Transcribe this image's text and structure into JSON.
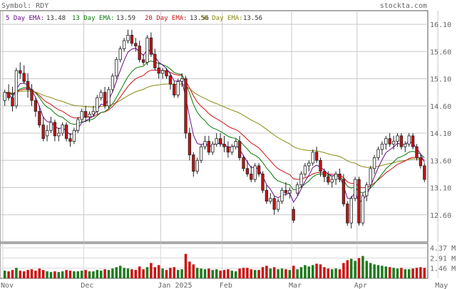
{
  "header": {
    "symbol_label": "Symbol: RDY",
    "site": "stockta.com"
  },
  "legend": [
    {
      "label": "5 Day EMA:",
      "value": "13.48",
      "color": "#6a0d8a"
    },
    {
      "label": "13 Day EMA:",
      "value": "13.59",
      "color": "#0a7a0a"
    },
    {
      "label": "20 Day EMA:",
      "value": "13.56",
      "color": "#cc1111"
    },
    {
      "label": "50 Day EMA:",
      "value": "13.56",
      "color": "#8a8a14"
    }
  ],
  "chart_data": {
    "type": "candlestick",
    "price_ylim": [
      12.1,
      16.35
    ],
    "price_ticks": [
      "16.10",
      "15.60",
      "15.10",
      "14.60",
      "14.10",
      "13.60",
      "13.10",
      "12.60"
    ],
    "price_tick_values": [
      16.1,
      15.6,
      15.1,
      14.6,
      14.1,
      13.6,
      13.1,
      12.6
    ],
    "volume_ticks": [
      "4.37 M",
      "2.91 M",
      "1.46 M"
    ],
    "volume_tick_values": [
      4.37,
      2.91,
      1.46
    ],
    "volume_ylim": [
      0,
      5.0
    ],
    "x_labels": [
      {
        "label": "Nov",
        "index": 0
      },
      {
        "label": "Dec",
        "index": 21
      },
      {
        "label": "Jan 2025",
        "index": 41
      },
      {
        "label": "Feb",
        "index": 57
      },
      {
        "label": "Mar",
        "index": 75
      },
      {
        "label": "Apr",
        "index": 92
      },
      {
        "label": "May",
        "index": 113
      }
    ],
    "colors": {
      "up": "#ffffff",
      "down": "#cc1111",
      "vol_up": "#1e7a1e",
      "vol_down": "#cc1111"
    },
    "candles": [
      [
        14.7,
        14.9,
        14.6,
        14.85,
        1.1
      ],
      [
        14.85,
        15.0,
        14.7,
        14.75,
        1.0
      ],
      [
        14.75,
        14.95,
        14.5,
        14.6,
        1.2
      ],
      [
        14.6,
        15.3,
        14.55,
        15.25,
        1.5
      ],
      [
        15.25,
        15.4,
        15.1,
        15.2,
        1.1
      ],
      [
        15.2,
        15.35,
        15.0,
        15.05,
        1.0
      ],
      [
        15.05,
        15.2,
        14.75,
        14.9,
        1.2
      ],
      [
        14.9,
        15.0,
        14.6,
        14.7,
        1.3
      ],
      [
        14.7,
        14.75,
        14.4,
        14.5,
        1.1
      ],
      [
        14.5,
        14.6,
        14.2,
        14.25,
        1.4
      ],
      [
        14.25,
        14.4,
        13.95,
        14.0,
        1.2
      ],
      [
        14.05,
        14.25,
        13.95,
        14.15,
        1.0
      ],
      [
        14.15,
        14.4,
        14.1,
        14.3,
        0.9
      ],
      [
        14.3,
        14.35,
        13.95,
        14.05,
        1.0
      ],
      [
        14.05,
        14.2,
        13.95,
        14.1,
        0.9
      ],
      [
        14.1,
        14.3,
        14.05,
        14.25,
        1.0
      ],
      [
        14.25,
        14.3,
        13.95,
        14.0,
        1.2
      ],
      [
        14.0,
        14.1,
        13.85,
        13.95,
        1.1
      ],
      [
        13.95,
        14.2,
        13.9,
        14.15,
        1.0
      ],
      [
        14.15,
        14.4,
        14.1,
        14.35,
        1.0
      ],
      [
        14.35,
        14.55,
        14.3,
        14.5,
        1.1
      ],
      [
        14.5,
        14.6,
        14.3,
        14.4,
        1.2
      ],
      [
        14.4,
        14.5,
        14.3,
        14.45,
        1.0
      ],
      [
        14.45,
        14.6,
        14.4,
        14.5,
        1.0
      ],
      [
        14.5,
        14.8,
        14.45,
        14.75,
        1.2
      ],
      [
        14.75,
        14.9,
        14.7,
        14.85,
        1.1
      ],
      [
        14.85,
        14.95,
        14.55,
        14.6,
        1.3
      ],
      [
        14.6,
        14.95,
        14.55,
        14.9,
        1.2
      ],
      [
        14.9,
        15.2,
        14.85,
        15.15,
        1.4
      ],
      [
        15.15,
        15.5,
        15.1,
        15.45,
        1.6
      ],
      [
        15.45,
        15.7,
        15.4,
        15.65,
        1.8
      ],
      [
        15.65,
        15.85,
        15.6,
        15.8,
        1.5
      ],
      [
        15.8,
        16.0,
        15.75,
        15.9,
        1.4
      ],
      [
        15.9,
        16.0,
        15.7,
        15.75,
        1.3
      ],
      [
        15.75,
        15.85,
        15.6,
        15.7,
        1.2
      ],
      [
        15.7,
        15.8,
        15.4,
        15.45,
        1.7
      ],
      [
        15.45,
        15.55,
        15.35,
        15.4,
        1.3
      ],
      [
        15.4,
        15.9,
        15.35,
        15.85,
        1.6
      ],
      [
        15.85,
        15.95,
        15.5,
        15.55,
        2.2
      ],
      [
        15.55,
        15.65,
        15.25,
        15.3,
        1.6
      ],
      [
        15.3,
        15.4,
        15.1,
        15.2,
        1.9
      ],
      [
        15.2,
        15.3,
        15.1,
        15.25,
        1.4
      ],
      [
        15.25,
        15.3,
        15.1,
        15.15,
        1.2
      ],
      [
        15.15,
        15.2,
        14.9,
        15.0,
        1.5
      ],
      [
        15.0,
        15.05,
        14.75,
        14.8,
        1.6
      ],
      [
        14.8,
        15.1,
        14.75,
        15.05,
        1.2
      ],
      [
        15.05,
        15.2,
        14.95,
        15.1,
        1.3
      ],
      [
        15.1,
        15.15,
        14.0,
        14.1,
        3.5
      ],
      [
        14.1,
        14.2,
        13.6,
        13.7,
        2.4
      ],
      [
        13.7,
        13.75,
        13.3,
        13.4,
        2.0
      ],
      [
        13.4,
        13.65,
        13.35,
        13.6,
        1.5
      ],
      [
        13.6,
        13.9,
        13.55,
        13.85,
        1.4
      ],
      [
        13.85,
        14.05,
        13.8,
        13.95,
        1.3
      ],
      [
        13.95,
        14.05,
        13.7,
        13.75,
        1.4
      ],
      [
        13.75,
        13.95,
        13.7,
        13.9,
        1.2
      ],
      [
        13.9,
        14.1,
        13.85,
        14.0,
        1.3
      ],
      [
        14.0,
        14.1,
        13.85,
        13.9,
        1.1
      ],
      [
        13.9,
        14.05,
        13.75,
        13.85,
        1.2
      ],
      [
        13.85,
        13.95,
        13.65,
        13.75,
        1.3
      ],
      [
        13.75,
        13.9,
        13.7,
        13.85,
        1.1
      ],
      [
        13.85,
        14.0,
        13.8,
        13.95,
        1.0
      ],
      [
        13.95,
        14.05,
        13.6,
        13.65,
        1.4
      ],
      [
        13.65,
        13.7,
        13.4,
        13.45,
        1.5
      ],
      [
        13.45,
        13.6,
        13.3,
        13.35,
        1.5
      ],
      [
        13.35,
        13.5,
        13.2,
        13.25,
        1.3
      ],
      [
        13.25,
        13.55,
        13.2,
        13.5,
        1.2
      ],
      [
        13.5,
        13.55,
        13.3,
        13.35,
        1.2
      ],
      [
        13.35,
        13.4,
        13.0,
        13.05,
        1.6
      ],
      [
        13.05,
        13.15,
        12.8,
        12.85,
        1.8
      ],
      [
        12.85,
        13.0,
        12.8,
        12.9,
        1.4
      ],
      [
        12.9,
        12.95,
        12.6,
        12.7,
        1.6
      ],
      [
        12.7,
        12.9,
        12.65,
        12.85,
        1.3
      ],
      [
        12.85,
        13.1,
        12.8,
        13.05,
        1.4
      ],
      [
        13.05,
        13.2,
        12.95,
        13.0,
        1.3
      ],
      [
        13.0,
        13.1,
        12.9,
        13.05,
        1.2
      ],
      [
        12.7,
        12.75,
        12.45,
        12.5,
        1.8
      ],
      [
        13.0,
        13.2,
        12.95,
        13.15,
        1.3
      ],
      [
        13.15,
        13.4,
        13.1,
        13.35,
        1.6
      ],
      [
        13.35,
        13.55,
        13.3,
        13.5,
        1.9
      ],
      [
        13.5,
        13.6,
        13.4,
        13.55,
        1.7
      ],
      [
        13.55,
        13.8,
        13.5,
        13.75,
        1.9
      ],
      [
        13.75,
        13.85,
        13.55,
        13.6,
        2.1
      ],
      [
        13.6,
        13.65,
        13.3,
        13.4,
        2.0
      ],
      [
        13.4,
        13.45,
        13.2,
        13.3,
        1.6
      ],
      [
        13.3,
        13.4,
        13.15,
        13.2,
        1.4
      ],
      [
        13.2,
        13.3,
        13.1,
        13.25,
        1.3
      ],
      [
        13.25,
        13.4,
        13.15,
        13.35,
        1.4
      ],
      [
        13.35,
        13.45,
        13.2,
        13.25,
        1.3
      ],
      [
        13.25,
        13.35,
        12.75,
        12.8,
        2.2
      ],
      [
        12.8,
        12.85,
        12.4,
        12.45,
        2.6
      ],
      [
        12.45,
        12.95,
        12.35,
        12.9,
        2.8
      ],
      [
        12.9,
        13.3,
        12.85,
        13.25,
        2.5
      ],
      [
        13.25,
        13.3,
        12.4,
        12.45,
        2.9
      ],
      [
        12.45,
        13.0,
        12.4,
        12.95,
        3.2
      ],
      [
        12.95,
        13.2,
        12.85,
        13.15,
        2.5
      ],
      [
        13.15,
        13.5,
        13.1,
        13.45,
        2.2
      ],
      [
        13.45,
        13.7,
        13.35,
        13.65,
        2.0
      ],
      [
        13.65,
        13.85,
        13.6,
        13.8,
        1.9
      ],
      [
        13.8,
        13.95,
        13.7,
        13.9,
        1.8
      ],
      [
        13.9,
        14.05,
        13.8,
        14.0,
        1.7
      ],
      [
        14.0,
        14.1,
        13.85,
        13.9,
        1.6
      ],
      [
        13.9,
        14.05,
        13.8,
        13.95,
        1.5
      ],
      [
        13.95,
        14.1,
        13.85,
        14.05,
        1.4
      ],
      [
        14.05,
        14.1,
        13.8,
        13.85,
        1.5
      ],
      [
        13.85,
        13.95,
        13.75,
        13.9,
        1.3
      ],
      [
        13.9,
        14.1,
        13.85,
        14.05,
        1.3
      ],
      [
        14.05,
        14.1,
        13.8,
        13.85,
        1.4
      ],
      [
        13.85,
        13.9,
        13.6,
        13.65,
        1.5
      ],
      [
        13.65,
        13.7,
        13.45,
        13.5,
        1.6
      ],
      [
        13.5,
        13.55,
        13.2,
        13.25,
        1.5
      ]
    ]
  }
}
